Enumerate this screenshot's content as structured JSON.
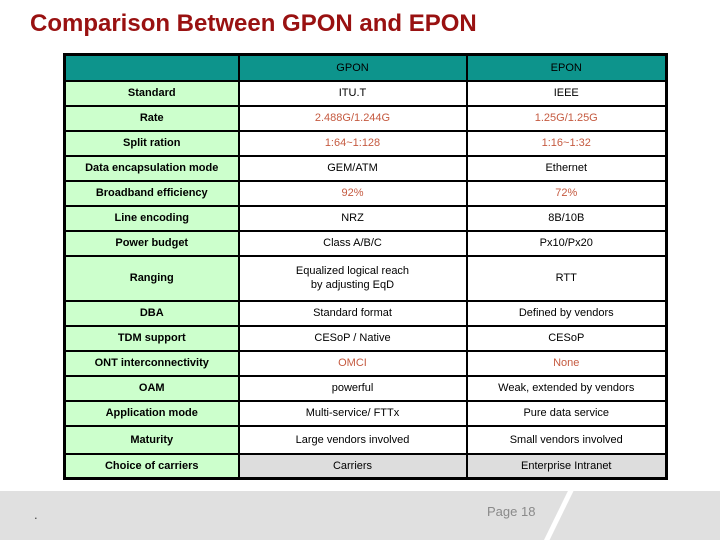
{
  "slide": {
    "title": "Comparison Between GPON and EPON",
    "page_label": "Page 18",
    "stray_dot": "."
  },
  "colors": {
    "title-red": "#991111",
    "header-teal": "#0D948C",
    "label-green": "#CCFFCC",
    "value-red": "#C55A40",
    "footer-gray": "#E0E0E0",
    "border-black": "#000000"
  },
  "table": {
    "header": {
      "label": "",
      "gpon": "GPON",
      "epon": "EPON"
    },
    "rows": [
      {
        "label": "Standard",
        "gpon": "ITU.T",
        "epon": "IEEE",
        "red": false
      },
      {
        "label": "Rate",
        "gpon": "2.488G/1.244G",
        "epon": "1.25G/1.25G",
        "red": true
      },
      {
        "label": "Split ration",
        "gpon": "1:64~1:128",
        "epon": "1:16~1:32",
        "red": true
      },
      {
        "label": "Data encapsulation mode",
        "gpon": "GEM/ATM",
        "epon": "Ethernet",
        "red": false
      },
      {
        "label": "Broadband efficiency",
        "gpon": "92%",
        "epon": "72%",
        "red": true
      },
      {
        "label": "Line encoding",
        "gpon": "NRZ",
        "epon": "8B/10B",
        "red": false
      },
      {
        "label": "Power budget",
        "gpon": "Class A/B/C",
        "epon": "Px10/Px20",
        "red": false
      },
      {
        "label": "Ranging",
        "gpon": "Equalized logical reach\nby adjusting EqD",
        "epon": "RTT",
        "red": false
      },
      {
        "label": "DBA",
        "gpon": "Standard format",
        "epon": "Defined by vendors",
        "red": false
      },
      {
        "label": "TDM support",
        "gpon": "CESoP / Native",
        "epon": "CESoP",
        "red": false
      },
      {
        "label": "ONT interconnectivity",
        "gpon": "OMCI",
        "epon": "None",
        "red": true
      },
      {
        "label": "OAM",
        "gpon": "powerful",
        "epon": "Weak, extended by vendors",
        "red": false
      },
      {
        "label": "Application mode",
        "gpon": "Multi-service/ FTTx",
        "epon": "Pure data service",
        "red": false
      },
      {
        "label": "Maturity",
        "gpon": "Large vendors involved",
        "epon": "Small vendors involved",
        "red": false
      },
      {
        "label": "Choice of carriers",
        "gpon": "Carriers",
        "epon": "Enterprise Intranet",
        "red": false
      }
    ]
  }
}
